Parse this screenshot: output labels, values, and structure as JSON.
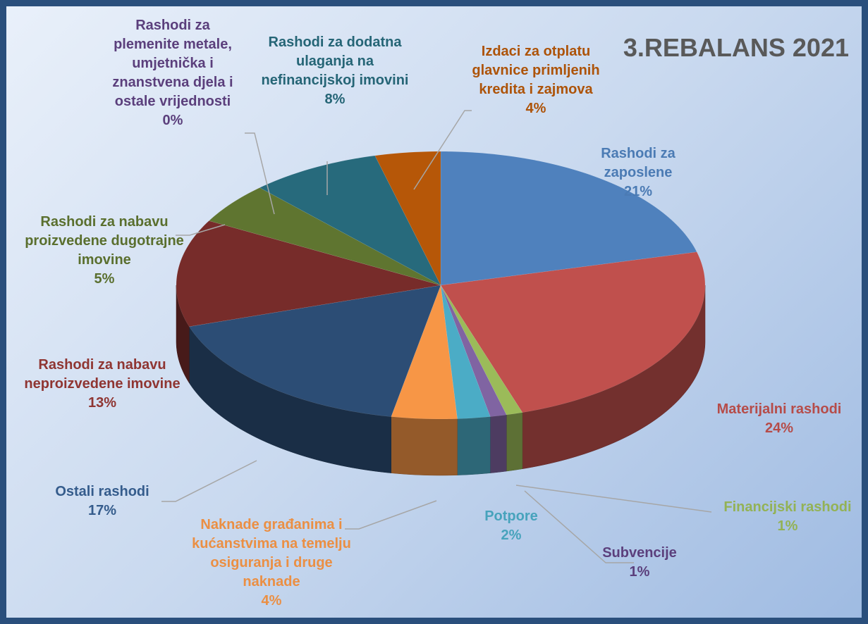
{
  "chart_data": {
    "type": "pie3d",
    "title": "3.REBALANS 2021",
    "categories": [
      "Rashodi za zaposlene",
      "Materijalni rashodi",
      "Financijski rashodi",
      "Subvencije",
      "Potpore",
      "Naknade građanima i kućanstvima na temelju osiguranja i druge naknade",
      "Ostali rashodi",
      "Rashodi za nabavu neproizvedene imovine",
      "Rashodi za nabavu proizvedene dugotrajne imovine",
      "Rashodi za plemenite metale, umjetnička i znanstvena djela i ostale vrijednosti",
      "Rashodi za dodatna ulaganja na nefinancijskoj imovini",
      "Izdaci za otplatu glavnice primljenih kredita i zajmova"
    ],
    "values": [
      21,
      24,
      1,
      1,
      2,
      4,
      17,
      13,
      5,
      0,
      8,
      4
    ],
    "value_labels": [
      "21%",
      "24%",
      "1%",
      "1%",
      "2%",
      "4%",
      "17%",
      "13%",
      "5%",
      "0%",
      "8%",
      "4%"
    ],
    "colors": [
      "#4f81bd",
      "#c0504d",
      "#9bbb59",
      "#8064a2",
      "#4bacc6",
      "#f79646",
      "#2c4d75",
      "#772c2a",
      "#5f7530",
      "#4d3b62",
      "#276a7c",
      "#b65708"
    ]
  }
}
